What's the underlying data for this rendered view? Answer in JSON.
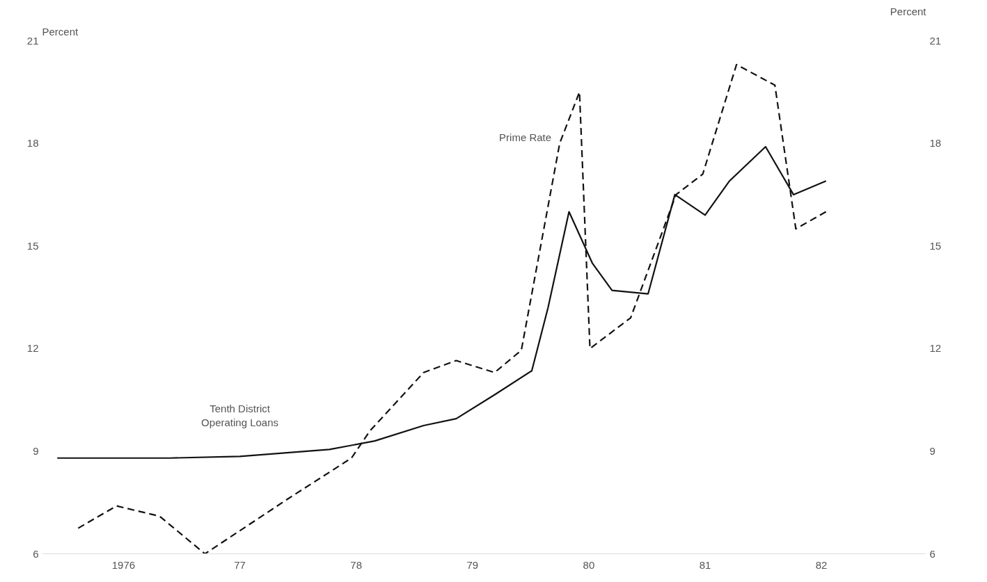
{
  "chart_data": {
    "type": "line",
    "ylabel": "Percent",
    "y2label": "Percent",
    "xlim": [
      1975.3,
      1982.9
    ],
    "xticks": [
      {
        "value": 1976,
        "label": "1976"
      },
      {
        "value": 1977,
        "label": "77"
      },
      {
        "value": 1978,
        "label": "78"
      },
      {
        "value": 1979,
        "label": "79"
      },
      {
        "value": 1980,
        "label": "80"
      },
      {
        "value": 1981,
        "label": "81"
      },
      {
        "value": 1982,
        "label": "82"
      }
    ],
    "ylim": [
      6,
      21
    ],
    "yticks": [
      6,
      9,
      12,
      15,
      18,
      21
    ],
    "y2lim": [
      6,
      21
    ],
    "y2ticks": [
      6,
      9,
      12,
      15,
      18,
      21
    ],
    "grid": false,
    "series": [
      {
        "name": "Tenth District Operating Loans",
        "color": "#111111",
        "line_style": "solid",
        "x": [
          1975.43,
          1976.4,
          1977.0,
          1977.77,
          1978.16,
          1978.58,
          1978.86,
          1979.19,
          1979.51,
          1979.65,
          1979.83,
          1980.03,
          1980.2,
          1980.51,
          1980.74,
          1981.0,
          1981.21,
          1981.52,
          1981.76,
          1982.04
        ],
        "values": [
          8.8,
          8.8,
          8.85,
          9.05,
          9.3,
          9.75,
          9.95,
          10.65,
          11.35,
          13.2,
          16.0,
          14.5,
          13.7,
          13.6,
          16.5,
          15.9,
          16.9,
          17.9,
          16.5,
          16.9
        ]
      },
      {
        "name": "Prime Rate",
        "color": "#111111",
        "line_style": "dashed",
        "x": [
          1975.61,
          1975.94,
          1976.31,
          1976.7,
          1977.41,
          1977.96,
          1978.12,
          1978.58,
          1978.86,
          1979.19,
          1979.42,
          1979.75,
          1979.92,
          1980.01,
          1980.36,
          1980.75,
          1980.98,
          1981.27,
          1981.6,
          1981.78,
          1982.04
        ],
        "values": [
          6.75,
          7.4,
          7.1,
          6.0,
          7.6,
          8.8,
          9.6,
          11.3,
          11.65,
          11.3,
          11.95,
          18.0,
          19.5,
          12.0,
          12.9,
          16.5,
          17.1,
          20.3,
          19.7,
          15.5,
          16.0
        ]
      }
    ]
  }
}
